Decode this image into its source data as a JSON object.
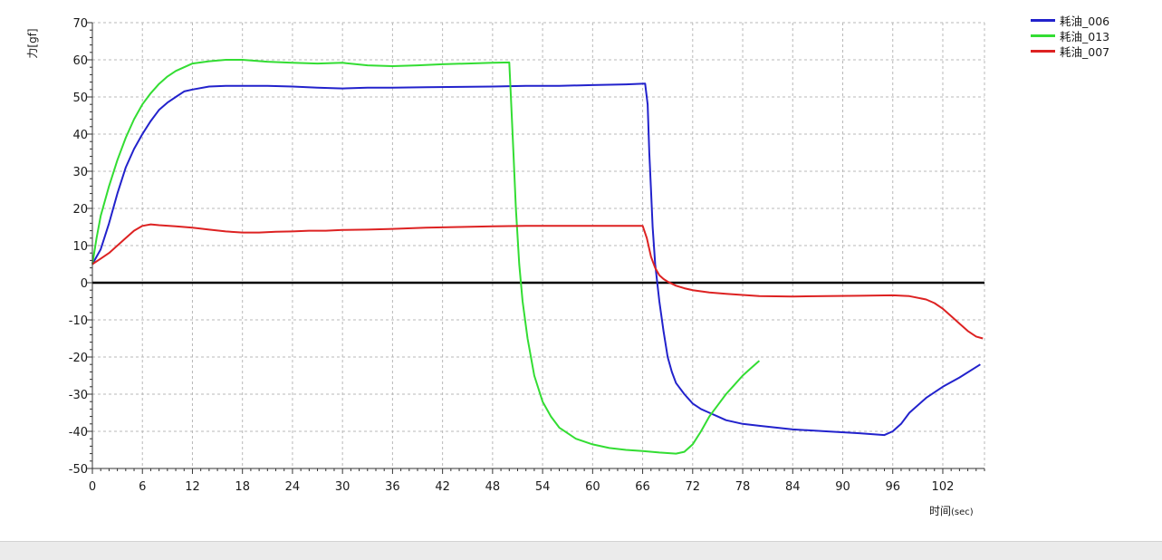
{
  "chart_data": {
    "type": "line",
    "xlabel": "时间",
    "xlabel_unit": "(sec)",
    "ylabel": "力[gf]",
    "xlim": [
      0,
      107
    ],
    "ylim": [
      -50,
      70
    ],
    "x_ticks": [
      0,
      6,
      12,
      18,
      24,
      30,
      36,
      42,
      48,
      54,
      60,
      66,
      72,
      78,
      84,
      90,
      96,
      102
    ],
    "y_ticks": [
      70,
      60,
      50,
      40,
      30,
      20,
      10,
      0,
      -10,
      -20,
      -30,
      -40,
      -50
    ],
    "grid": true,
    "zero_line": true,
    "legend_position": "top-right",
    "series": [
      {
        "name": "耗油_006",
        "color": "#2222cc",
        "points": [
          [
            0,
            5
          ],
          [
            1,
            9
          ],
          [
            2,
            16
          ],
          [
            3,
            24
          ],
          [
            4,
            31
          ],
          [
            5,
            36
          ],
          [
            6,
            40
          ],
          [
            7,
            43.5
          ],
          [
            8,
            46.5
          ],
          [
            9,
            48.5
          ],
          [
            10,
            50
          ],
          [
            11,
            51.5
          ],
          [
            12,
            52
          ],
          [
            14,
            52.8
          ],
          [
            16,
            53
          ],
          [
            18,
            53
          ],
          [
            21,
            53
          ],
          [
            24,
            52.8
          ],
          [
            27,
            52.5
          ],
          [
            30,
            52.3
          ],
          [
            33,
            52.5
          ],
          [
            36,
            52.5
          ],
          [
            40,
            52.6
          ],
          [
            44,
            52.7
          ],
          [
            48,
            52.8
          ],
          [
            52,
            53
          ],
          [
            56,
            53
          ],
          [
            60,
            53.2
          ],
          [
            64,
            53.4
          ],
          [
            66.3,
            53.6
          ],
          [
            66.6,
            48
          ],
          [
            66.8,
            35
          ],
          [
            67,
            25
          ],
          [
            67.2,
            15
          ],
          [
            67.5,
            5
          ],
          [
            68,
            -5
          ],
          [
            68.5,
            -13
          ],
          [
            69,
            -20
          ],
          [
            69.5,
            -24
          ],
          [
            70,
            -27
          ],
          [
            71,
            -30
          ],
          [
            72,
            -32.5
          ],
          [
            73,
            -34
          ],
          [
            74,
            -35
          ],
          [
            75,
            -36
          ],
          [
            76,
            -37
          ],
          [
            78,
            -38
          ],
          [
            80,
            -38.5
          ],
          [
            84,
            -39.5
          ],
          [
            88,
            -40
          ],
          [
            92,
            -40.5
          ],
          [
            95,
            -41
          ],
          [
            96,
            -40
          ],
          [
            97,
            -38
          ],
          [
            98,
            -35
          ],
          [
            100,
            -31
          ],
          [
            102,
            -28
          ],
          [
            104,
            -25.5
          ],
          [
            106.5,
            -22
          ]
        ]
      },
      {
        "name": "耗油_013",
        "color": "#33dd33",
        "points": [
          [
            0,
            5
          ],
          [
            0.5,
            12
          ],
          [
            1,
            18
          ],
          [
            2,
            26
          ],
          [
            3,
            33
          ],
          [
            4,
            39
          ],
          [
            5,
            44
          ],
          [
            6,
            48
          ],
          [
            7,
            51
          ],
          [
            8,
            53.5
          ],
          [
            9,
            55.5
          ],
          [
            10,
            57
          ],
          [
            11,
            58
          ],
          [
            12,
            59
          ],
          [
            14,
            59.6
          ],
          [
            16,
            60
          ],
          [
            18,
            60
          ],
          [
            21,
            59.5
          ],
          [
            24,
            59.2
          ],
          [
            27,
            59
          ],
          [
            30,
            59.2
          ],
          [
            33,
            58.5
          ],
          [
            36,
            58.3
          ],
          [
            39,
            58.5
          ],
          [
            42,
            58.8
          ],
          [
            45,
            59
          ],
          [
            48,
            59.2
          ],
          [
            50,
            59.3
          ],
          [
            50.2,
            50
          ],
          [
            50.5,
            35
          ],
          [
            50.8,
            20
          ],
          [
            51.2,
            5
          ],
          [
            51.6,
            -5
          ],
          [
            52.2,
            -15
          ],
          [
            53,
            -25
          ],
          [
            54,
            -32
          ],
          [
            55,
            -36
          ],
          [
            56,
            -39
          ],
          [
            57,
            -40.5
          ],
          [
            58,
            -42
          ],
          [
            60,
            -43.5
          ],
          [
            62,
            -44.5
          ],
          [
            64,
            -45
          ],
          [
            66,
            -45.3
          ],
          [
            68,
            -45.7
          ],
          [
            70,
            -46
          ],
          [
            71,
            -45.5
          ],
          [
            72,
            -43.5
          ],
          [
            73,
            -40
          ],
          [
            74,
            -36
          ],
          [
            75,
            -33
          ],
          [
            76,
            -30
          ],
          [
            77,
            -27.5
          ],
          [
            78,
            -25
          ],
          [
            79,
            -23
          ],
          [
            80,
            -21
          ]
        ]
      },
      {
        "name": "耗油_007",
        "color": "#dd2222",
        "points": [
          [
            0,
            5
          ],
          [
            1,
            6.5
          ],
          [
            2,
            8
          ],
          [
            3,
            10
          ],
          [
            4,
            12
          ],
          [
            5,
            14
          ],
          [
            6,
            15.3
          ],
          [
            7,
            15.7
          ],
          [
            8,
            15.5
          ],
          [
            10,
            15.2
          ],
          [
            12,
            14.8
          ],
          [
            14,
            14.3
          ],
          [
            16,
            13.8
          ],
          [
            18,
            13.5
          ],
          [
            20,
            13.5
          ],
          [
            22,
            13.7
          ],
          [
            24,
            13.8
          ],
          [
            26,
            14
          ],
          [
            28,
            14
          ],
          [
            30,
            14.2
          ],
          [
            33,
            14.3
          ],
          [
            36,
            14.5
          ],
          [
            40,
            14.8
          ],
          [
            44,
            15
          ],
          [
            48,
            15.2
          ],
          [
            52,
            15.3
          ],
          [
            56,
            15.3
          ],
          [
            60,
            15.3
          ],
          [
            64,
            15.3
          ],
          [
            66,
            15.3
          ],
          [
            66.5,
            12
          ],
          [
            67,
            7
          ],
          [
            67.5,
            4
          ],
          [
            68,
            2
          ],
          [
            68.5,
            1
          ],
          [
            69,
            0.3
          ],
          [
            70,
            -0.8
          ],
          [
            71,
            -1.5
          ],
          [
            72,
            -2
          ],
          [
            74,
            -2.6
          ],
          [
            76,
            -3
          ],
          [
            78,
            -3.3
          ],
          [
            80,
            -3.6
          ],
          [
            84,
            -3.7
          ],
          [
            88,
            -3.6
          ],
          [
            92,
            -3.5
          ],
          [
            96,
            -3.4
          ],
          [
            98,
            -3.6
          ],
          [
            100,
            -4.5
          ],
          [
            101,
            -5.5
          ],
          [
            102,
            -7
          ],
          [
            103,
            -9
          ],
          [
            104,
            -11
          ],
          [
            105,
            -13
          ],
          [
            106,
            -14.5
          ],
          [
            106.8,
            -15
          ]
        ]
      }
    ]
  }
}
